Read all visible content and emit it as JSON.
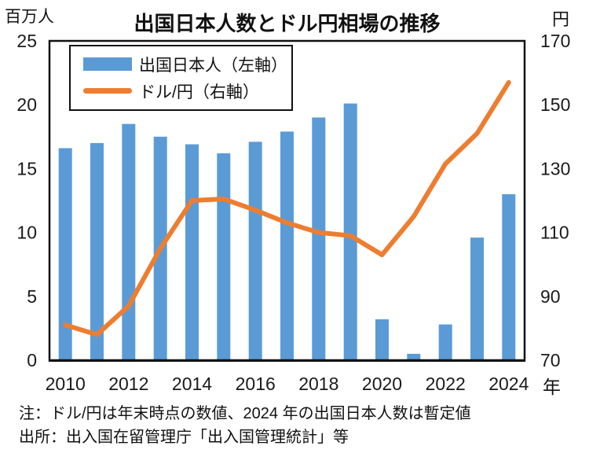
{
  "chart_data": {
    "type": "bar",
    "title": "出国日本人数とドル円相場の推移",
    "years": [
      2010,
      2011,
      2012,
      2013,
      2014,
      2015,
      2016,
      2017,
      2018,
      2019,
      2020,
      2021,
      2022,
      2023,
      2024
    ],
    "series": [
      {
        "name": "出国日本人（左軸）",
        "type": "bar",
        "axis": "left",
        "color": "#5B9BD5",
        "values": [
          16.6,
          17.0,
          18.5,
          17.5,
          16.9,
          16.2,
          17.1,
          17.9,
          19.0,
          20.1,
          3.2,
          0.5,
          2.8,
          9.6,
          13.0
        ]
      },
      {
        "name": "ドル/円（右軸）",
        "type": "line",
        "axis": "right",
        "color": "#ED7D31",
        "values": [
          81,
          78,
          87,
          105,
          120,
          120.5,
          117,
          113,
          110,
          109,
          103,
          115,
          131.5,
          141,
          157
        ]
      }
    ],
    "left_axis": {
      "unit": "百万人",
      "min": 0,
      "max": 25,
      "ticks": [
        0,
        5,
        10,
        15,
        20,
        25
      ]
    },
    "right_axis": {
      "unit": "円",
      "min": 70,
      "max": 170,
      "ticks": [
        70,
        90,
        110,
        130,
        150,
        170
      ]
    },
    "x_axis": {
      "unit": "年",
      "tick_years": [
        2010,
        2012,
        2014,
        2016,
        2018,
        2020,
        2022,
        2024
      ]
    },
    "grid": "off",
    "legend_position": "top-left-inside",
    "notes": [
      "注：ドル/円は年末時点の数値、2024 年の出国日本人数は暫定値",
      "出所：出入国在留管理庁「出入国管理統計」等"
    ]
  }
}
